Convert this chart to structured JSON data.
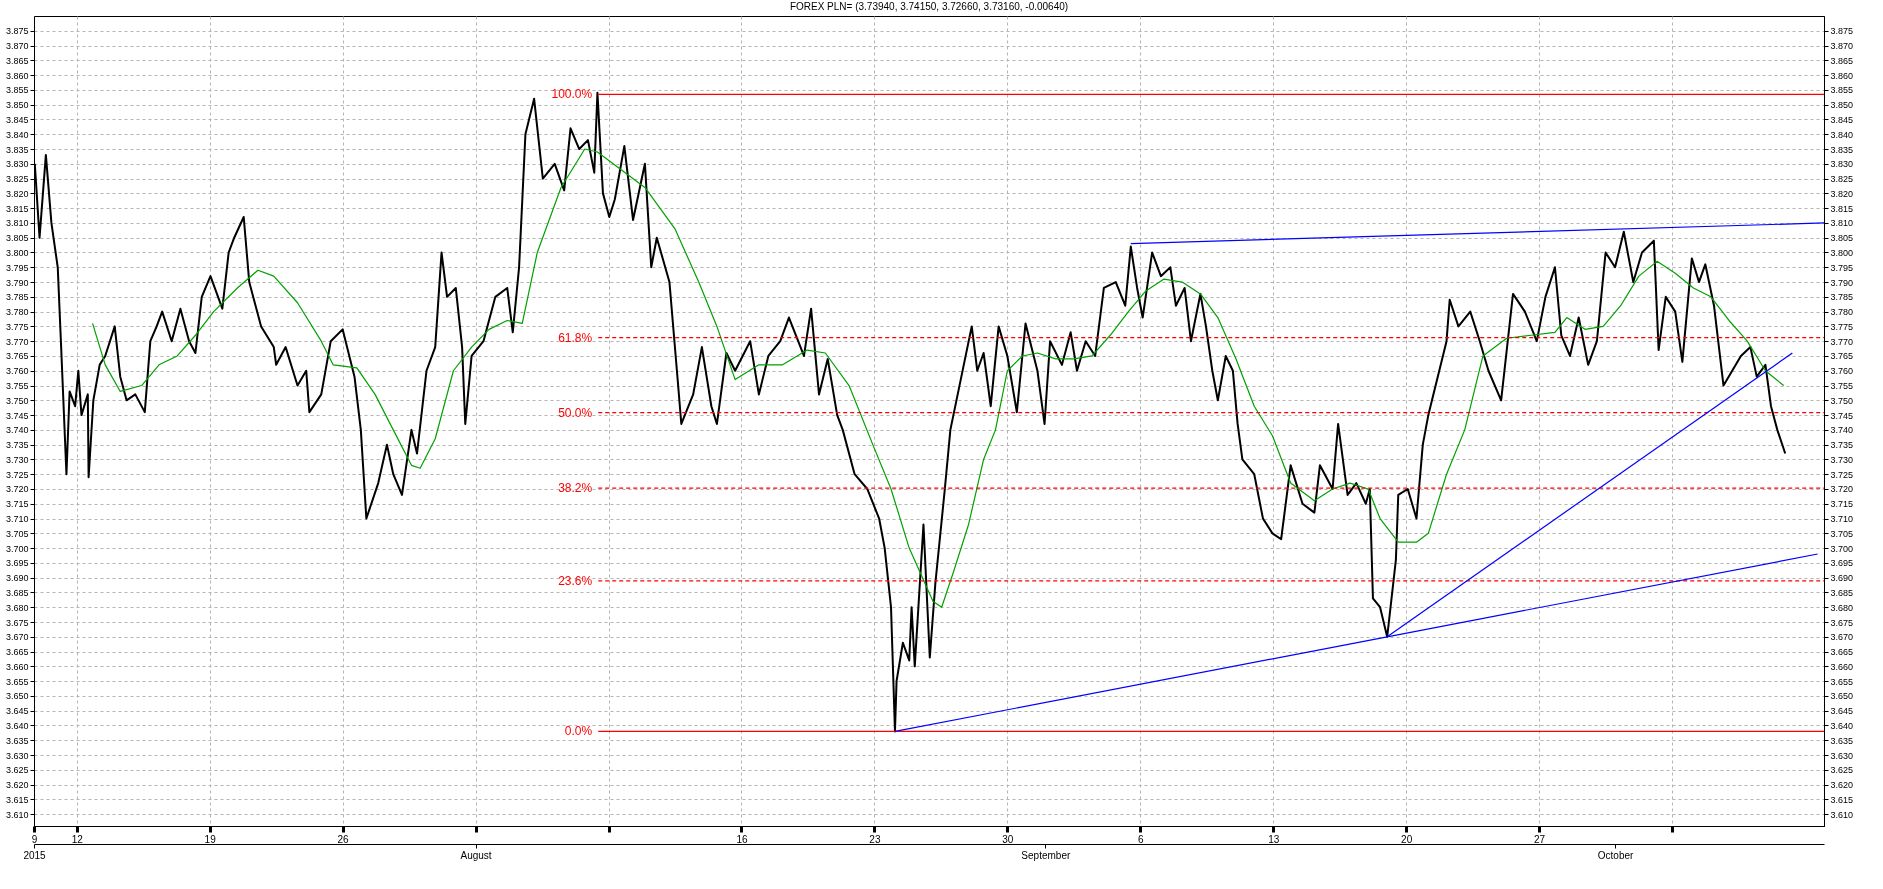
{
  "chart_data": {
    "type": "line",
    "title": "FOREX PLN= (3.73940, 3.74150, 3.72660, 3.73160, -0.00640)",
    "xlim": [
      "2015-07-09T18:00",
      "2015-10-12"
    ],
    "xticks": [
      {
        "value": "2015-07-09T18:00",
        "label": "9"
      },
      {
        "value": "2015-07-12",
        "label": "12"
      },
      {
        "value": "2015-07-19",
        "label": "19"
      },
      {
        "value": "2015-07-26",
        "label": "26"
      },
      {
        "value": "2015-08-02",
        "label": null
      },
      {
        "value": "2015-08-09",
        "label": null
      },
      {
        "value": "2015-08-16",
        "label": "16"
      },
      {
        "value": "2015-08-23",
        "label": "23"
      },
      {
        "value": "2015-08-30",
        "label": "30"
      },
      {
        "value": "2015-09-06",
        "label": "6"
      },
      {
        "value": "2015-09-13",
        "label": "13"
      },
      {
        "value": "2015-09-20",
        "label": "20"
      },
      {
        "value": "2015-09-27",
        "label": "27"
      },
      {
        "value": "2015-10-04",
        "label": null
      }
    ],
    "x2lim": [
      "2015-07-09T18:00",
      "2015-10-12"
    ],
    "x2ticks": [
      {
        "value": "2015-07-09T18:00",
        "label": "2015"
      },
      {
        "value": "2015-08-02",
        "label": "August"
      },
      {
        "value": "2015-09-01",
        "label": "September"
      },
      {
        "value": "2015-10-01",
        "label": "October"
      }
    ],
    "ylim": [
      3.606,
      3.88
    ],
    "yticks": [
      {
        "value": 3.61,
        "label": "3.610"
      },
      3.615,
      {
        "value": 3.62,
        "label": "3.620"
      },
      3.625,
      {
        "value": 3.63,
        "label": "3.630"
      },
      3.635,
      {
        "value": 3.64,
        "label": "3.640"
      },
      3.645,
      {
        "value": 3.65,
        "label": "3.650"
      },
      3.655,
      {
        "value": 3.66,
        "label": "3.660"
      },
      3.665,
      {
        "value": 3.67,
        "label": "3.670"
      },
      3.675,
      {
        "value": 3.68,
        "label": "3.680"
      },
      3.685,
      {
        "value": 3.69,
        "label": "3.690"
      },
      3.695,
      {
        "value": 3.7,
        "label": "3.700"
      },
      3.705,
      {
        "value": 3.71,
        "label": "3.710"
      },
      3.715,
      {
        "value": 3.72,
        "label": "3.720"
      },
      3.725,
      {
        "value": 3.73,
        "label": "3.730"
      },
      3.735,
      {
        "value": 3.74,
        "label": "3.740"
      },
      3.745,
      {
        "value": 3.75,
        "label": "3.750"
      },
      3.755,
      {
        "value": 3.76,
        "label": "3.760"
      },
      3.765,
      {
        "value": 3.77,
        "label": "3.770"
      },
      3.775,
      {
        "value": 3.78,
        "label": "3.780"
      },
      3.785,
      {
        "value": 3.79,
        "label": "3.790"
      },
      3.795,
      {
        "value": 3.8,
        "label": "3.800"
      },
      3.805,
      {
        "value": 3.81,
        "label": "3.810"
      },
      3.815,
      {
        "value": 3.82,
        "label": "3.820"
      },
      3.825,
      {
        "value": 3.83,
        "label": "3.830"
      },
      3.835,
      {
        "value": 3.84,
        "label": "3.840"
      },
      3.845,
      {
        "value": 3.85,
        "label": "3.850"
      },
      3.855,
      {
        "value": 3.86,
        "label": "3.860"
      },
      3.865,
      {
        "value": 3.87,
        "label": "3.870"
      },
      3.875
    ],
    "y2lim": [
      3.606,
      3.88
    ],
    "y2ticks": [
      {
        "value": 3.61,
        "label": "3.610"
      },
      3.615,
      {
        "value": 3.62,
        "label": "3.620"
      },
      3.625,
      {
        "value": 3.63,
        "label": "3.630"
      },
      3.635,
      {
        "value": 3.64,
        "label": "3.640"
      },
      3.645,
      {
        "value": 3.65,
        "label": "3.650"
      },
      3.655,
      {
        "value": 3.66,
        "label": "3.660"
      },
      3.665,
      {
        "value": 3.67,
        "label": "3.670"
      },
      3.675,
      {
        "value": 3.68,
        "label": "3.680"
      },
      3.685,
      {
        "value": 3.69,
        "label": "3.690"
      },
      3.695,
      {
        "value": 3.7,
        "label": "3.700"
      },
      3.705,
      {
        "value": 3.71,
        "label": "3.710"
      },
      3.715,
      {
        "value": 3.72,
        "label": "3.720"
      },
      3.725,
      {
        "value": 3.73,
        "label": "3.730"
      },
      3.735,
      {
        "value": 3.74,
        "label": "3.740"
      },
      3.745,
      {
        "value": 3.75,
        "label": "3.750"
      },
      3.755,
      {
        "value": 3.76,
        "label": "3.760"
      },
      3.765,
      {
        "value": 3.77,
        "label": "3.770"
      },
      3.775,
      {
        "value": 3.78,
        "label": "3.780"
      },
      3.785,
      {
        "value": 3.79,
        "label": "3.790"
      },
      3.795,
      {
        "value": 3.8,
        "label": "3.800"
      },
      3.805,
      {
        "value": 3.81,
        "label": "3.810"
      },
      3.815,
      {
        "value": 3.82,
        "label": "3.820"
      },
      3.825,
      {
        "value": 3.83,
        "label": "3.830"
      },
      3.835,
      {
        "value": 3.84,
        "label": "3.840"
      },
      3.845,
      {
        "value": 3.85,
        "label": "3.850"
      },
      3.855,
      {
        "value": 3.86,
        "label": "3.860"
      },
      3.865,
      {
        "value": 3.87,
        "label": "3.870"
      },
      3.875
    ],
    "grid": true,
    "series": [
      {
        "color": "#000000",
        "line_style": "solid",
        "x": [
          "2015-07-09T19:00",
          "2015-07-10T01:00",
          "2015-07-10T09:00",
          "2015-07-10T16:00",
          "2015-07-11T00:00",
          "2015-07-11T04:00",
          "2015-07-11T11:00",
          "2015-07-11T15:00",
          "2015-07-11T22:00",
          "2015-07-12T02:00",
          "2015-07-12T06:00",
          "2015-07-12T14:00",
          "2015-07-12T15:00",
          "2015-07-12T21:00",
          "2015-07-13T05:00",
          "2015-07-13T12:00",
          "2015-07-14T00:00",
          "2015-07-14T07:00",
          "2015-07-14T15:00",
          "2015-07-15T02:00",
          "2015-07-15T14:00",
          "2015-07-15T21:00",
          "2015-07-16T05:00",
          "2015-07-16T12:00",
          "2015-07-17T00:00",
          "2015-07-17T11:00",
          "2015-07-17T22:00",
          "2015-07-18T06:00",
          "2015-07-18T14:00",
          "2015-07-19T01:00",
          "2015-07-19T16:00",
          "2015-07-20T00:00",
          "2015-07-20T07:00",
          "2015-07-20T19:00",
          "2015-07-21T02:00",
          "2015-07-21T17:00",
          "2015-07-22T09:00",
          "2015-07-22T12:00",
          "2015-07-23T00:00",
          "2015-07-23T15:00",
          "2015-07-24T02:00",
          "2015-07-24T06:00",
          "2015-07-24T21:00",
          "2015-07-25T09:00",
          "2015-07-26T00:00",
          "2015-07-26T15:00",
          "2015-07-26T23:00",
          "2015-07-27T06:00",
          "2015-07-27T21:00",
          "2015-07-28T08:00",
          "2015-07-28T16:00",
          "2015-07-29T03:00",
          "2015-07-29T15:00",
          "2015-07-29T22:00",
          "2015-07-30T10:00",
          "2015-07-30T21:00",
          "2015-07-31T05:00",
          "2015-07-31T12:00",
          "2015-07-31T23:00",
          "2015-08-01T07:00",
          "2015-08-01T11:00",
          "2015-08-01T19:00",
          "2015-08-02T10:00",
          "2015-08-03T01:00",
          "2015-08-03T16:00",
          "2015-08-03T23:00",
          "2015-08-04T07:00",
          "2015-08-04T15:00",
          "2015-08-05T02:00",
          "2015-08-05T13:00",
          "2015-08-06T04:00",
          "2015-08-06T16:00",
          "2015-08-07T00:00",
          "2015-08-07T11:00",
          "2015-08-07T22:00",
          "2015-08-08T06:00",
          "2015-08-08T10:00",
          "2015-08-08T17:00",
          "2015-08-09T01:00",
          "2015-08-09T08:00",
          "2015-08-09T20:00",
          "2015-08-10T07:00",
          "2015-08-10T22:00",
          "2015-08-11T06:00",
          "2015-08-11T13:00",
          "2015-08-12T05:00",
          "2015-08-12T16:00",
          "2015-08-12T20:00",
          "2015-08-13T11:00",
          "2015-08-13T22:00",
          "2015-08-14T10:00",
          "2015-08-14T17:00",
          "2015-08-15T05:00",
          "2015-08-15T16:00",
          "2015-08-16T11:00",
          "2015-08-16T22:00",
          "2015-08-17T10:00",
          "2015-08-18T01:00",
          "2015-08-18T12:00",
          "2015-08-19T07:00",
          "2015-08-19T16:00",
          "2015-08-20T02:00",
          "2015-08-20T13:00",
          "2015-08-21T01:00",
          "2015-08-21T08:00",
          "2015-08-21T23:00",
          "2015-08-22T15:00",
          "2015-08-23T06:00",
          "2015-08-23T13:00",
          "2015-08-23T21:00",
          "2015-08-24T02:00",
          "2015-08-24T04:00",
          "2015-08-24T12:00",
          "2015-08-24T20:00",
          "2015-08-24T23:00",
          "2015-08-25T03:00",
          "2015-08-25T14:00",
          "2015-08-25T22:00",
          "2015-08-26T05:00",
          "2015-08-26T17:00",
          "2015-08-27T00:00",
          "2015-08-28T03:00",
          "2015-08-28T10:00",
          "2015-08-28T18:00",
          "2015-08-29T03:00",
          "2015-08-29T13:00",
          "2015-08-30T00:00",
          "2015-08-30T12:00",
          "2015-08-30T23:00",
          "2015-08-31T14:00",
          "2015-08-31T23:00",
          "2015-09-01T06:00",
          "2015-09-01T21:00",
          "2015-09-02T08:00",
          "2015-09-02T16:00",
          "2015-09-03T03:00",
          "2015-09-03T15:00",
          "2015-09-04T02:00",
          "2015-09-04T17:00",
          "2015-09-05T05:00",
          "2015-09-05T12:00",
          "2015-09-05T20:00",
          "2015-09-06T03:00",
          "2015-09-06T15:00",
          "2015-09-07T02:00",
          "2015-09-07T14:00",
          "2015-09-07T21:00",
          "2015-09-08T08:00",
          "2015-09-08T16:00",
          "2015-09-09T04:00",
          "2015-09-09T11:00",
          "2015-09-09T19:00",
          "2015-09-10T02:00",
          "2015-09-10T12:00",
          "2015-09-10T21:00",
          "2015-09-11T03:00",
          "2015-09-11T09:00",
          "2015-09-12T00:00",
          "2015-09-12T11:00",
          "2015-09-12T23:00",
          "2015-09-13T10:00",
          "2015-09-13T22:00",
          "2015-09-14T13:00",
          "2015-09-15T04:00",
          "2015-09-15T11:00",
          "2015-09-16T03:00",
          "2015-09-16T10:00",
          "2015-09-16T22:00",
          "2015-09-17T09:00",
          "2015-09-17T21:00",
          "2015-09-18T02:00",
          "2015-09-18T06:00",
          "2015-09-18T15:00",
          "2015-09-19T00:00",
          "2015-09-19T11:00",
          "2015-09-19T14:00",
          "2015-09-20T02:00",
          "2015-09-20T13:00",
          "2015-09-20T21:00",
          "2015-09-21T04:00",
          "2015-09-22T03:00",
          "2015-09-22T07:00",
          "2015-09-22T18:00",
          "2015-09-23T09:00",
          "2015-09-23T21:00",
          "2015-09-24T08:00",
          "2015-09-25T00:00",
          "2015-09-25T15:00",
          "2015-09-26T06:00",
          "2015-09-26T21:00",
          "2015-09-27T08:00",
          "2015-09-27T20:00",
          "2015-09-28T04:00",
          "2015-09-28T15:00",
          "2015-09-29T02:00",
          "2015-09-29T14:00",
          "2015-09-30T01:00",
          "2015-09-30T12:00",
          "2015-10-01T00:00",
          "2015-10-01T11:00",
          "2015-10-01T23:00",
          "2015-10-02T10:00",
          "2015-10-03T01:00",
          "2015-10-03T07:00",
          "2015-10-03T16:00",
          "2015-10-04T04:00",
          "2015-10-04T13:00",
          "2015-10-05T01:00",
          "2015-10-05T10:00",
          "2015-10-05T18:00",
          "2015-10-06T05:00",
          "2015-10-06T17:00",
          "2015-10-07T04:00",
          "2015-10-07T15:00",
          "2015-10-08T03:00",
          "2015-10-08T11:00",
          "2015-10-08T22:00",
          "2015-10-09T05:00",
          "2015-10-09T13:00",
          "2015-10-09T23:00"
        ],
        "values": [
          3.83,
          3.805,
          3.833,
          3.81,
          3.795,
          3.77,
          3.725,
          3.753,
          3.748,
          3.76,
          3.745,
          3.752,
          3.724,
          3.75,
          3.762,
          3.765,
          3.775,
          3.758,
          3.75,
          3.752,
          3.746,
          3.77,
          3.775,
          3.78,
          3.77,
          3.781,
          3.77,
          3.766,
          3.785,
          3.792,
          3.781,
          3.8,
          3.805,
          3.812,
          3.79,
          3.775,
          3.768,
          3.762,
          3.768,
          3.755,
          3.76,
          3.746,
          3.752,
          3.77,
          3.774,
          3.758,
          3.74,
          3.71,
          3.722,
          3.735,
          3.725,
          3.718,
          3.74,
          3.732,
          3.76,
          3.768,
          3.8,
          3.785,
          3.788,
          3.768,
          3.742,
          3.765,
          3.77,
          3.785,
          3.788,
          3.773,
          3.795,
          3.84,
          3.852,
          3.825,
          3.83,
          3.821,
          3.842,
          3.835,
          3.838,
          3.827,
          3.854,
          3.82,
          3.812,
          3.818,
          3.836,
          3.811,
          3.83,
          3.795,
          3.805,
          3.79,
          3.755,
          3.742,
          3.752,
          3.768,
          3.748,
          3.742,
          3.766,
          3.76,
          3.77,
          3.752,
          3.765,
          3.77,
          3.778,
          3.765,
          3.781,
          3.752,
          3.764,
          3.745,
          3.74,
          3.725,
          3.72,
          3.71,
          3.7,
          3.68,
          3.638,
          3.655,
          3.668,
          3.662,
          3.68,
          3.66,
          3.708,
          3.663,
          3.688,
          3.72,
          3.74,
          3.775,
          3.76,
          3.766,
          3.748,
          3.775,
          3.765,
          3.746,
          3.776,
          3.76,
          3.742,
          3.77,
          3.762,
          3.773,
          3.76,
          3.77,
          3.765,
          3.788,
          3.79,
          3.782,
          3.802,
          3.788,
          3.778,
          3.8,
          3.792,
          3.795,
          3.782,
          3.788,
          3.77,
          3.786,
          3.775,
          3.76,
          3.75,
          3.765,
          3.76,
          3.742,
          3.73,
          3.725,
          3.71,
          3.705,
          3.703,
          3.728,
          3.715,
          3.712,
          3.728,
          3.72,
          3.742,
          3.718,
          3.722,
          3.715,
          3.72,
          3.683,
          3.68,
          3.67,
          3.696,
          3.718,
          3.72,
          3.71,
          3.735,
          3.745,
          3.77,
          3.784,
          3.775,
          3.78,
          3.77,
          3.76,
          3.75,
          3.786,
          3.78,
          3.77,
          3.785,
          3.795,
          3.772,
          3.765,
          3.778,
          3.762,
          3.77,
          3.8,
          3.795,
          3.807,
          3.79,
          3.8,
          3.804,
          3.767,
          3.785,
          3.78,
          3.763,
          3.798,
          3.79,
          3.796,
          3.782,
          3.755,
          3.76,
          3.765,
          3.768,
          3.758,
          3.762,
          3.748,
          3.74,
          3.732
        ]
      },
      {
        "color": "#00a000",
        "line_style": "solid",
        "x": [
          "2015-07-12T20:00",
          "2015-07-13T12:00",
          "2015-07-14T07:00",
          "2015-07-15T10:00",
          "2015-07-16T08:00",
          "2015-07-17T07:00",
          "2015-07-18T06:00",
          "2015-07-19T05:00",
          "2015-07-20T11:00",
          "2015-07-21T13:00",
          "2015-07-22T09:00",
          "2015-07-23T15:00",
          "2015-07-24T21:00",
          "2015-07-25T12:00",
          "2015-07-26T18:00",
          "2015-07-27T17:00",
          "2015-07-28T16:00",
          "2015-07-29T15:00",
          "2015-07-30T02:00",
          "2015-07-30T21:00",
          "2015-07-31T20:00",
          "2015-08-01T19:00",
          "2015-08-02T17:00",
          "2015-08-03T16:00",
          "2015-08-04T11:00",
          "2015-08-05T06:00",
          "2015-08-06T12:00",
          "2015-08-07T18:00",
          "2015-08-08T10:00",
          "2015-08-09T16:00",
          "2015-08-10T22:00",
          "2015-08-12T12:00",
          "2015-08-13T18:00",
          "2015-08-14T17:00",
          "2015-08-15T16:00",
          "2015-08-16T22:00",
          "2015-08-18T04:00",
          "2015-08-19T11:00",
          "2015-08-20T10:00",
          "2015-08-21T16:00",
          "2015-08-22T22:00",
          "2015-08-23T21:00",
          "2015-08-24T20:00",
          "2015-08-26T02:00",
          "2015-08-26T13:00",
          "2015-08-27T04:00",
          "2015-08-27T23:00",
          "2015-08-28T18:00",
          "2015-08-29T09:00",
          "2015-08-30T00:00",
          "2015-08-30T19:00",
          "2015-08-31T14:00",
          "2015-09-01T13:00",
          "2015-09-02T12:00",
          "2015-09-03T11:00",
          "2015-09-04T10:00",
          "2015-09-05T09:00",
          "2015-09-06T07:00",
          "2015-09-07T06:00",
          "2015-09-08T05:00",
          "2015-09-09T04:00",
          "2015-09-10T02:00",
          "2015-09-11T01:00",
          "2015-09-12T00:00",
          "2015-09-12T23:00",
          "2015-09-13T22:00",
          "2015-09-15T04:00",
          "2015-09-16T03:00",
          "2015-09-17T01:00",
          "2015-09-18T00:00",
          "2015-09-18T15:00",
          "2015-09-19T14:00",
          "2015-09-20T13:00",
          "2015-09-21T04:00",
          "2015-09-22T03:00",
          "2015-09-23T02:00",
          "2015-09-24T01:00",
          "2015-09-25T07:00",
          "2015-09-26T14:00",
          "2015-09-27T20:00",
          "2015-09-28T11:00",
          "2015-09-29T10:00",
          "2015-09-30T09:00",
          "2015-10-01T07:00",
          "2015-10-02T06:00",
          "2015-10-03T05:00",
          "2015-10-04T04:00",
          "2015-10-05T03:00",
          "2015-10-06T01:00",
          "2015-10-07T00:00",
          "2015-10-07T23:00",
          "2015-10-08T22:00",
          "2015-10-09T21:00"
        ],
        "values": [
          3.776,
          3.762,
          3.753,
          3.755,
          3.762,
          3.765,
          3.772,
          3.78,
          3.788,
          3.794,
          3.792,
          3.783,
          3.77,
          3.762,
          3.761,
          3.752,
          3.74,
          3.728,
          3.727,
          3.737,
          3.76,
          3.768,
          3.774,
          3.777,
          3.776,
          3.8,
          3.822,
          3.835,
          3.834,
          3.828,
          3.822,
          3.808,
          3.79,
          3.775,
          3.757,
          3.762,
          3.762,
          3.767,
          3.766,
          3.755,
          3.735,
          3.72,
          3.7,
          3.682,
          3.68,
          3.692,
          3.708,
          3.73,
          3.74,
          3.76,
          3.765,
          3.766,
          3.764,
          3.764,
          3.765,
          3.772,
          3.78,
          3.787,
          3.791,
          3.79,
          3.786,
          3.778,
          3.764,
          3.748,
          3.738,
          3.722,
          3.716,
          3.72,
          3.722,
          3.72,
          3.71,
          3.702,
          3.702,
          3.705,
          3.725,
          3.74,
          3.765,
          3.771,
          3.772,
          3.773,
          3.778,
          3.774,
          3.775,
          3.782,
          3.792,
          3.797,
          3.793,
          3.788,
          3.785,
          3.777,
          3.77,
          3.76,
          3.755
        ]
      },
      {
        "name": "100.0%",
        "color": "#ff0000",
        "line_style": "solid",
        "x": [
          "2015-08-08T11:00",
          "2015-10-12"
        ],
        "values": [
          3.8535,
          3.8535
        ]
      },
      {
        "name": "61.8%",
        "color": "#ff0000",
        "line_style": "dashed",
        "x": [
          "2015-08-08T11:00",
          "2015-10-12"
        ],
        "values": [
          3.7712,
          3.7712
        ]
      },
      {
        "name": "50.0%",
        "color": "#ff0000",
        "line_style": "dashed",
        "x": [
          "2015-08-08T11:00",
          "2015-10-12"
        ],
        "values": [
          3.7458,
          3.7458
        ]
      },
      {
        "name": "38.2%",
        "color": "#ff0000",
        "line_style": "dashed",
        "x": [
          "2015-08-08T11:00",
          "2015-10-12"
        ],
        "values": [
          3.7203,
          3.7203
        ]
      },
      {
        "name": "23.6%",
        "color": "#ff0000",
        "line_style": "dashed",
        "x": [
          "2015-08-08T11:00",
          "2015-10-12"
        ],
        "values": [
          3.6889,
          3.6889
        ]
      },
      {
        "name": "0.0%",
        "color": "#ff0000",
        "line_style": "solid",
        "x": [
          "2015-08-08T11:00",
          "2015-10-12"
        ],
        "values": [
          3.638,
          3.638
        ]
      },
      {
        "color": "#0000ff",
        "line_style": "solid",
        "x": [
          "2015-09-05T12:00",
          "2015-10-12"
        ],
        "values": [
          3.803,
          3.81
        ]
      },
      {
        "color": "#0000ff",
        "line_style": "solid",
        "x": [
          "2015-08-24T02:00",
          "2015-09-19T00:00",
          "2015-10-11T16:00"
        ],
        "values": [
          3.638,
          3.67,
          3.698
        ]
      },
      {
        "color": "#0000ff",
        "line_style": "solid",
        "x": [
          "2015-09-19T00:00",
          "2015-10-10T08:00"
        ],
        "values": [
          3.67,
          3.766
        ]
      }
    ]
  }
}
